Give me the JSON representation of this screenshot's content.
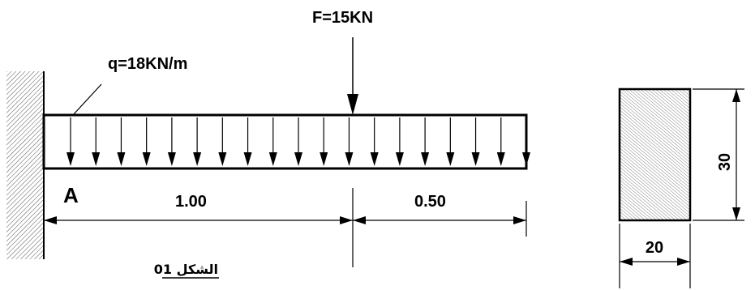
{
  "figure": {
    "point_force_label": "F=15KN",
    "distributed_load_label": "q=18KN/m",
    "support_point_label": "A",
    "span_1_length": "1.00",
    "span_2_length": "0.50",
    "caption": "الشكل 01",
    "section_height": "30",
    "section_width": "20"
  }
}
